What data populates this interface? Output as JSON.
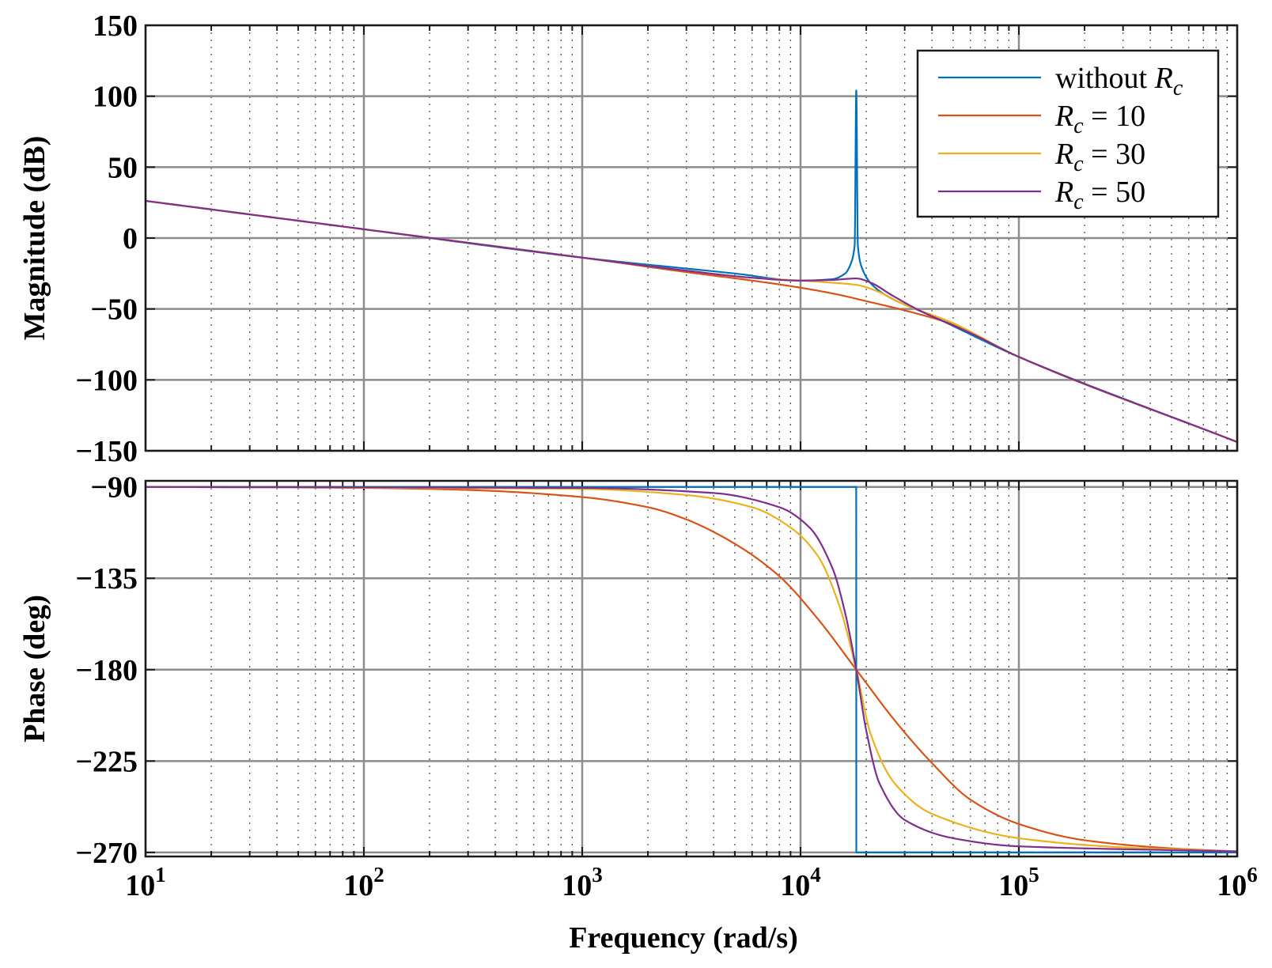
{
  "chart_data": {
    "type": "line",
    "title": "",
    "xscale": "log",
    "x_range": [
      10,
      1000000
    ],
    "x_ticks": [
      {
        "value": 10,
        "base": "10",
        "exp": "1"
      },
      {
        "value": 100,
        "base": "10",
        "exp": "2"
      },
      {
        "value": 1000,
        "base": "10",
        "exp": "3"
      },
      {
        "value": 10000,
        "base": "10",
        "exp": "4"
      },
      {
        "value": 100000,
        "base": "10",
        "exp": "5"
      },
      {
        "value": 1000000,
        "base": "10",
        "exp": "6"
      }
    ],
    "xlabel": "Frequency  (rad/s)",
    "resonance_frequency": 18000,
    "panels": [
      {
        "id": "magnitude",
        "ylabel": "Magnitude (dB)",
        "ylim": [
          -150,
          150
        ],
        "y_ticks": [
          150,
          100,
          50,
          0,
          -50,
          -100,
          -150
        ],
        "y_tick_labels": [
          "150",
          "100",
          "50",
          "0",
          "−50",
          "−100",
          "−150"
        ]
      },
      {
        "id": "phase",
        "ylabel": "Phase (deg)",
        "ylim": [
          -272,
          -87
        ],
        "y_ticks": [
          -90,
          -135,
          -180,
          -225,
          -270
        ],
        "y_tick_labels": [
          "−90",
          "−135",
          "−180",
          "−225",
          "−270"
        ]
      }
    ],
    "series": [
      {
        "name": "without R_c",
        "legend": {
          "prefix": "without ",
          "symbol": "R",
          "sub": "c",
          "suffix": ""
        },
        "color": "#0072BD",
        "magnitude": [
          [
            10,
            26.2
          ],
          [
            100,
            6.2
          ],
          [
            1000,
            -13.8
          ],
          [
            5000,
            -25
          ],
          [
            10000,
            -30
          ],
          [
            14000,
            -29
          ],
          [
            16000,
            -25
          ],
          [
            17000,
            -18
          ],
          [
            17700,
            -5
          ],
          [
            18000,
            104
          ],
          [
            18300,
            -5
          ],
          [
            19000,
            -20
          ],
          [
            21000,
            -32
          ],
          [
            25000,
            -41
          ],
          [
            40000,
            -55
          ],
          [
            100000,
            -83.8
          ],
          [
            1000000,
            -143.8
          ]
        ],
        "phase": [
          [
            10,
            -90
          ],
          [
            17990,
            -90
          ],
          [
            18010,
            -270
          ],
          [
            1000000,
            -270
          ]
        ]
      },
      {
        "name": "R_c = 10",
        "legend": {
          "prefix": "",
          "symbol": "R",
          "sub": "c",
          "suffix": " = 10"
        },
        "color": "#D95319",
        "magnitude": [
          [
            10,
            26.2
          ],
          [
            100,
            6.2
          ],
          [
            1000,
            -13.8
          ],
          [
            3000,
            -24
          ],
          [
            6000,
            -30
          ],
          [
            10000,
            -35
          ],
          [
            15000,
            -40
          ],
          [
            20000,
            -44.5
          ],
          [
            30000,
            -51
          ],
          [
            50000,
            -61
          ],
          [
            100000,
            -83.8
          ],
          [
            1000000,
            -143.8
          ]
        ],
        "phase": [
          [
            10,
            -90
          ],
          [
            100,
            -90.5
          ],
          [
            300,
            -91.5
          ],
          [
            1000,
            -95
          ],
          [
            2000,
            -100
          ],
          [
            3000,
            -106
          ],
          [
            5000,
            -118
          ],
          [
            8000,
            -134
          ],
          [
            12000,
            -155
          ],
          [
            18000,
            -180
          ],
          [
            27000,
            -205
          ],
          [
            40000,
            -226
          ],
          [
            60000,
            -244
          ],
          [
            100000,
            -256
          ],
          [
            200000,
            -264
          ],
          [
            500000,
            -268
          ],
          [
            1000000,
            -269.5
          ]
        ]
      },
      {
        "name": "R_c = 30",
        "legend": {
          "prefix": "",
          "symbol": "R",
          "sub": "c",
          "suffix": " = 30"
        },
        "color": "#EDB120",
        "magnitude": [
          [
            10,
            26.2
          ],
          [
            100,
            6.2
          ],
          [
            1000,
            -13.8
          ],
          [
            3000,
            -23
          ],
          [
            6000,
            -28
          ],
          [
            10000,
            -30
          ],
          [
            14000,
            -31.5
          ],
          [
            18000,
            -33
          ],
          [
            22000,
            -37
          ],
          [
            30000,
            -47
          ],
          [
            50000,
            -60
          ],
          [
            100000,
            -83.8
          ],
          [
            1000000,
            -143.8
          ]
        ],
        "phase": [
          [
            10,
            -90
          ],
          [
            1000,
            -91
          ],
          [
            3000,
            -94
          ],
          [
            6000,
            -100
          ],
          [
            9000,
            -110
          ],
          [
            12000,
            -124
          ],
          [
            15000,
            -148
          ],
          [
            18000,
            -180
          ],
          [
            21000,
            -212
          ],
          [
            27000,
            -236
          ],
          [
            40000,
            -251
          ],
          [
            100000,
            -263
          ],
          [
            300000,
            -267.5
          ],
          [
            1000000,
            -269.5
          ]
        ]
      },
      {
        "name": "R_c = 50",
        "legend": {
          "prefix": "",
          "symbol": "R",
          "sub": "c",
          "suffix": " = 50"
        },
        "color": "#7E2F8E",
        "magnitude": [
          [
            10,
            26.2
          ],
          [
            100,
            6.2
          ],
          [
            1000,
            -13.8
          ],
          [
            3000,
            -23
          ],
          [
            6000,
            -28
          ],
          [
            10000,
            -30
          ],
          [
            14000,
            -29.5
          ],
          [
            18000,
            -28.5
          ],
          [
            21000,
            -31.5
          ],
          [
            26000,
            -40
          ],
          [
            35000,
            -51
          ],
          [
            60000,
            -67
          ],
          [
            100000,
            -83.8
          ],
          [
            1000000,
            -143.8
          ]
        ],
        "phase": [
          [
            10,
            -90
          ],
          [
            1000,
            -90.5
          ],
          [
            4000,
            -93
          ],
          [
            8000,
            -100
          ],
          [
            11000,
            -110
          ],
          [
            14000,
            -130
          ],
          [
            16000,
            -152
          ],
          [
            18000,
            -180
          ],
          [
            20000,
            -210
          ],
          [
            23000,
            -236
          ],
          [
            30000,
            -254
          ],
          [
            50000,
            -263
          ],
          [
            100000,
            -267
          ],
          [
            1000000,
            -269.5
          ]
        ]
      }
    ],
    "legend_position": "top-right",
    "grid": true
  }
}
